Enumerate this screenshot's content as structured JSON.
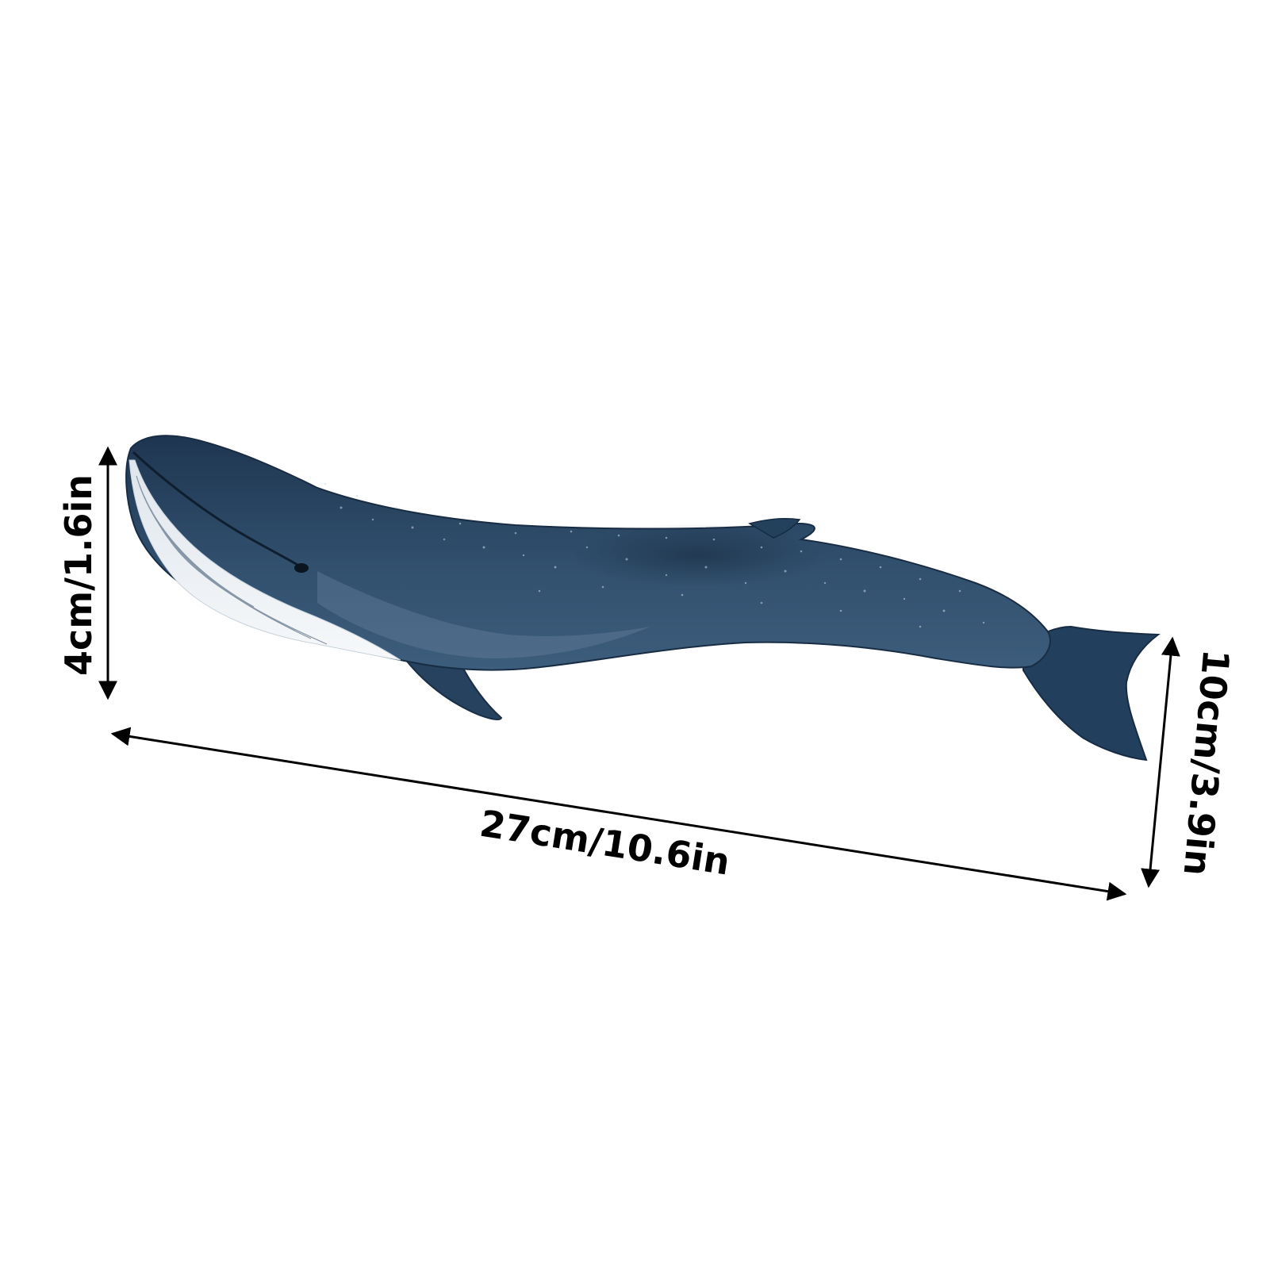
{
  "figure": {
    "subject": "blue whale figurine",
    "colors": {
      "background": "#ffffff",
      "whale_body": "#2f4d69",
      "whale_dark": "#1f3650",
      "whale_belly": "#e9eef3",
      "dimension_line": "#000000"
    }
  },
  "dimensions": {
    "height_head": "4cm/1.6in",
    "length": "27cm/10.6in",
    "height_tail": "10cm/3.9in"
  }
}
